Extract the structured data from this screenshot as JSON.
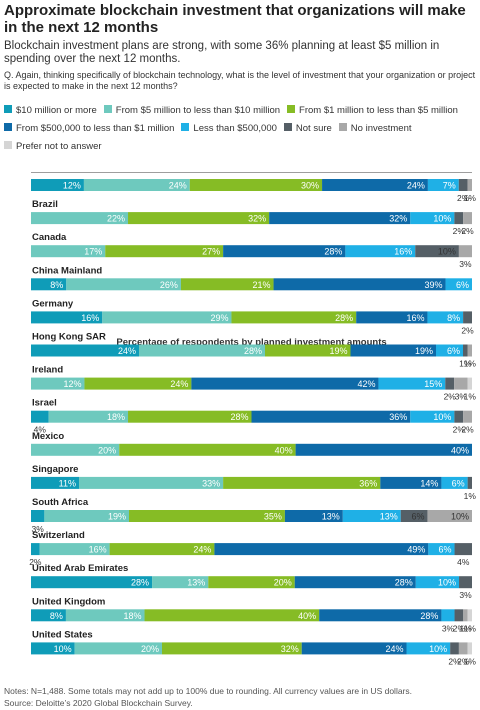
{
  "title": "Approximate blockchain investment that organizations will make in the next 12 months",
  "subtitle": "Blockchain investment plans are strong, with some 36% planning at least $5 million in spending over the next 12 months.",
  "question": "Q. Again, thinking specifically of blockchain technology, what is the level of investment that your organization or project is expected to make in the next 12 months?",
  "legend": [
    {
      "label": "$10 million or more",
      "color": "#0f9cb8"
    },
    {
      "label": "From $5 million to less than $10 million",
      "color": "#6ec9be"
    },
    {
      "label": "From $1 million to less than $5 million",
      "color": "#86bc25"
    },
    {
      "label": "From $500,000 to less than $1 million",
      "color": "#0e6aa8"
    },
    {
      "label": "Less than $500,000",
      "color": "#1fb0e6"
    },
    {
      "label": "Not sure",
      "color": "#555f66"
    },
    {
      "label": "No investment",
      "color": "#a8a8a8"
    },
    {
      "label": "Prefer not to answer",
      "color": "#d5d5d5"
    }
  ],
  "header_label": "Percentage of respondents by planned investment amounts",
  "notes": [
    "Notes: N=1,488. Some totals may not add up to 100% due to rounding. All currency values are in US dollars.",
    "Source: Deloitte’s 2020 Global Blockchain Survey."
  ],
  "chart_data": {
    "type": "bar",
    "orientation": "horizontal",
    "stacked": true,
    "unit": "%",
    "series_names": [
      "$10 million or more",
      "From $5 million to less than $10 million",
      "From $1 million to less than $5 million",
      "From $500,000 to less than $1 million",
      "Less than $500,000",
      "Not sure",
      "No investment",
      "Prefer not to answer"
    ],
    "categories": [
      "",
      "Brazil",
      "Canada",
      "China Mainland",
      "Germany",
      "Hong Kong SAR",
      "Ireland",
      "Israel",
      "Mexico",
      "Singapore",
      "South Africa",
      "Switzerland",
      "United Arab Emirates",
      "United Kingdom",
      "United States"
    ],
    "values": [
      [
        12,
        24,
        30,
        24,
        7,
        2,
        1,
        0
      ],
      [
        0,
        22,
        32,
        32,
        10,
        2,
        2,
        0
      ],
      [
        0,
        17,
        27,
        28,
        16,
        10,
        3,
        0
      ],
      [
        8,
        26,
        21,
        39,
        6,
        0,
        0,
        0
      ],
      [
        16,
        29,
        28,
        16,
        8,
        2,
        0,
        0
      ],
      [
        24,
        28,
        19,
        19,
        6,
        1,
        1,
        0
      ],
      [
        0,
        12,
        24,
        42,
        15,
        2,
        3,
        1
      ],
      [
        4,
        18,
        28,
        36,
        10,
        2,
        2,
        0
      ],
      [
        0,
        20,
        40,
        40,
        0,
        0,
        0,
        0
      ],
      [
        11,
        33,
        36,
        14,
        6,
        1,
        0,
        0
      ],
      [
        3,
        19,
        35,
        13,
        13,
        6,
        10,
        0
      ],
      [
        2,
        16,
        24,
        49,
        6,
        4,
        0,
        0
      ],
      [
        28,
        13,
        20,
        28,
        10,
        3,
        0,
        0
      ],
      [
        8,
        18,
        40,
        28,
        3,
        2,
        1,
        1
      ],
      [
        10,
        20,
        32,
        24,
        10,
        2,
        2,
        1
      ]
    ],
    "xlim": [
      0,
      100
    ],
    "grid": false,
    "legend_position": "top"
  }
}
